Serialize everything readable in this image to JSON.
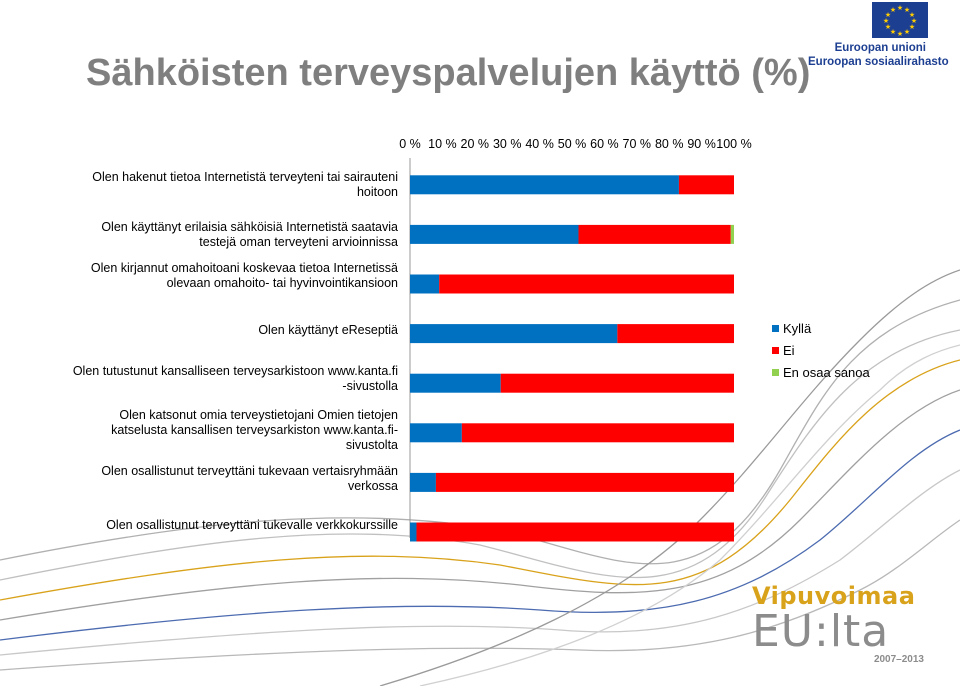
{
  "title": "Sähköisten terveyspalvelujen käyttö (%)",
  "logos": {
    "eu_line1": "Euroopan unioni",
    "eu_line2": "Euroopan sosiaalirahasto",
    "vipu_top": "Vipuvoimaa",
    "vipu_mid": "EU:lta",
    "vipu_years": "2007–2013"
  },
  "colors": {
    "kylla": "#0070c0",
    "ei": "#ff0000",
    "en_osaa": "#92d050"
  },
  "chart_data": {
    "type": "bar",
    "orientation": "horizontal",
    "stacked": true,
    "xlim": [
      0,
      100
    ],
    "xticks": [
      "0 %",
      "10 %",
      "20 %",
      "30 %",
      "40 %",
      "50 %",
      "60 %",
      "70 %",
      "80 %",
      "90 %",
      "100 %"
    ],
    "legend_position": "right",
    "categories": [
      "Olen hakenut tietoa Internetistä terveyteni tai sairauteni hoitoon",
      "Olen käyttänyt erilaisia sähköisiä Internetistä saatavia testejä oman terveyteni arvioinnissa",
      "Olen kirjannut omahoitoani koskevaa tietoa Internetissä olevaan omahoito- tai hyvinvointikansioon",
      "Olen käyttänyt eReseptiä",
      "Olen tutustunut kansalliseen terveysarkistoon www.kanta.fi -sivustolla",
      "Olen katsonut omia terveystietojani Omien tietojen katselusta kansallisen terveysarkiston www.kanta.fi-sivustolta",
      "Olen osallistunut terveyttäni tukevaan vertaisryhmään verkossa",
      "Olen osallistunut terveyttäni tukevalle verkkokurssille"
    ],
    "series": [
      {
        "name": "Kyllä",
        "values": [
          83,
          52,
          9,
          64,
          28,
          16,
          8,
          2
        ]
      },
      {
        "name": "Ei",
        "values": [
          17,
          47,
          91,
          36,
          72,
          84,
          92,
          98
        ]
      },
      {
        "name": "En osaa sanoa",
        "values": [
          0,
          1,
          0,
          0,
          0,
          0,
          0,
          0
        ]
      }
    ]
  }
}
